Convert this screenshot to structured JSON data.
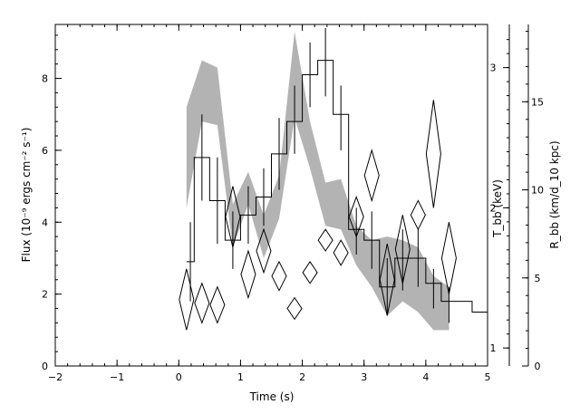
{
  "chart_data": {
    "type": "line",
    "title": "",
    "xlabel": "Time (s)",
    "ylabel": "Flux (10⁻⁹ ergs cm⁻² s⁻¹)",
    "y2label": "T_bb (keV)",
    "y3label": "R_bb (km/d_10 kpc)",
    "xlim": [
      -2,
      5
    ],
    "ylim": [
      0,
      9.5
    ],
    "x_ticks": [
      "−2",
      "−1",
      "0",
      "1",
      "2",
      "3",
      "4",
      "5"
    ],
    "y_ticks": [
      "0",
      "2",
      "4",
      "6",
      "8"
    ],
    "y2_ticks": [
      "1",
      "2",
      "3"
    ],
    "y2_tick_flux_positions": [
      0.5,
      4.4,
      8.3
    ],
    "y3_ticks": [
      "0",
      "5",
      "10",
      "15"
    ],
    "y3_tick_flux_positions": [
      0,
      2.45,
      4.9,
      7.35
    ],
    "grid": false,
    "legend": "none",
    "series": [
      {
        "kind": "flux-histogram",
        "color": "#000000",
        "edges": [
          0.125,
          0.25,
          0.5,
          0.75,
          1.0,
          1.25,
          1.5,
          1.75,
          2.0,
          2.25,
          2.5,
          2.75,
          3.0,
          3.25,
          3.5,
          3.75,
          4.0,
          4.25,
          4.5,
          4.75,
          5.0
        ],
        "values": [
          2.9,
          5.8,
          4.6,
          3.5,
          4.2,
          4.7,
          5.9,
          6.8,
          8.1,
          8.5,
          7.0,
          3.8,
          3.5,
          2.2,
          3.0,
          3.0,
          2.3,
          1.8,
          1.8,
          1.5
        ],
        "err_low": [
          1.8,
          4.6,
          3.4,
          2.7,
          3.4,
          3.9,
          4.9,
          5.9,
          7.2,
          7.5,
          6.0,
          3.1,
          2.7,
          1.4,
          2.1,
          2.2,
          1.6,
          1.2
        ],
        "err_high": [
          4.0,
          7.0,
          5.8,
          4.3,
          5.0,
          5.5,
          6.9,
          7.8,
          9.0,
          9.4,
          7.8,
          4.4,
          4.3,
          3.0,
          3.8,
          3.8,
          2.7,
          2.2
        ]
      },
      {
        "kind": "tbb-band",
        "color": "#b3b3b3",
        "x": [
          0.125,
          0.375,
          0.625,
          0.875,
          1.125,
          1.375,
          1.625,
          1.875,
          2.125,
          2.375,
          2.625,
          2.875,
          3.125,
          3.375,
          3.625,
          3.875,
          4.125,
          4.375
        ],
        "upper": [
          7.2,
          8.5,
          8.3,
          4.5,
          5.4,
          4.2,
          5.3,
          9.3,
          6.8,
          5.1,
          5.2,
          3.9,
          3.5,
          3.6,
          3.5,
          3.3,
          2.5,
          2.2
        ],
        "lower": [
          4.4,
          6.8,
          6.7,
          3.3,
          4.5,
          3.0,
          4.1,
          6.9,
          5.5,
          3.9,
          3.8,
          2.8,
          2.2,
          1.4,
          1.8,
          1.5,
          1.0,
          1.0
        ]
      },
      {
        "kind": "rbb-diamonds",
        "color": "#000000",
        "x": [
          0.125,
          0.375,
          0.625,
          0.875,
          1.125,
          1.375,
          1.625,
          1.875,
          2.125,
          2.375,
          2.625,
          2.875,
          3.125,
          3.375,
          3.625,
          3.875,
          4.125,
          4.375
        ],
        "low": [
          1.0,
          1.2,
          1.2,
          3.3,
          1.9,
          2.6,
          2.1,
          1.3,
          2.3,
          3.2,
          2.8,
          3.6,
          4.6,
          1.4,
          2.3,
          3.8,
          4.4,
          2.0
        ],
        "high": [
          2.7,
          2.3,
          2.2,
          5.0,
          3.2,
          3.8,
          2.9,
          1.9,
          2.9,
          3.8,
          3.5,
          4.7,
          6.0,
          3.4,
          4.2,
          4.6,
          7.4,
          4.0
        ]
      }
    ]
  }
}
